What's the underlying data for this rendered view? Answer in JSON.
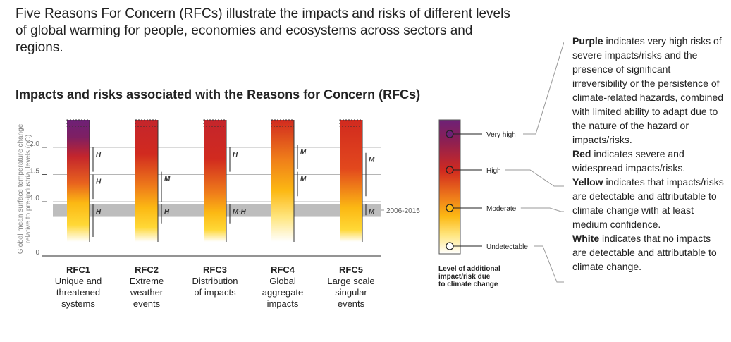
{
  "intro_text": "Five Reasons For Concern (RFCs) illustrate the impacts and risks of different levels of global warming for people, economies and ecosystems across sectors and regions.",
  "chart_data": {
    "type": "bar",
    "title": "Impacts and risks associated with the Reasons for Concern (RFCs)",
    "ylabel_line1": "Global mean surface temperature change",
    "ylabel_line2": "relative to pre-industrial levels (oC)",
    "yticks": [
      "2.0",
      "1.5",
      "1.0",
      "0"
    ],
    "ylim": [
      0,
      2.35
    ],
    "band": {
      "from": 0.72,
      "to": 0.95,
      "label": "2006-2015",
      "color": "#bdbdbd"
    },
    "categories": [
      {
        "id": "RFC1",
        "desc": [
          "Unique and",
          "threatened",
          "systems"
        ]
      },
      {
        "id": "RFC2",
        "desc": [
          "Extreme",
          "weather",
          "events"
        ]
      },
      {
        "id": "RFC3",
        "desc": [
          "Distribution",
          "of impacts"
        ]
      },
      {
        "id": "RFC4",
        "desc": [
          "Global",
          "aggregate",
          "impacts"
        ]
      },
      {
        "id": "RFC5",
        "desc": [
          "Large scale",
          "singular",
          "events"
        ]
      }
    ],
    "confidence_labels": [
      {
        "rfc": 0,
        "label": "H",
        "from": 0.35,
        "to": 0.95
      },
      {
        "rfc": 0,
        "label": "H",
        "from": 1.05,
        "to": 1.5
      },
      {
        "rfc": 0,
        "label": "H",
        "from": 1.55,
        "to": 2.0
      },
      {
        "rfc": 1,
        "label": "H",
        "from": 0.6,
        "to": 0.95
      },
      {
        "rfc": 1,
        "label": "M",
        "from": 1.0,
        "to": 1.55
      },
      {
        "rfc": 2,
        "label": "M-H",
        "from": 0.6,
        "to": 0.95
      },
      {
        "rfc": 2,
        "label": "H",
        "from": 1.55,
        "to": 2.0
      },
      {
        "rfc": 3,
        "label": "M",
        "from": 1.1,
        "to": 1.55
      },
      {
        "rfc": 3,
        "label": "M",
        "from": 1.6,
        "to": 2.05
      },
      {
        "rfc": 4,
        "label": "M",
        "from": 0.75,
        "to": 0.95
      },
      {
        "rfc": 4,
        "label": "M",
        "from": 1.1,
        "to": 1.9
      }
    ],
    "legend": {
      "title": [
        "Level of additional",
        "impact/risk due",
        "to climate change"
      ],
      "levels": [
        {
          "label": "Very high",
          "color": "#6d2077"
        },
        {
          "label": "High",
          "color": "#d12a1f"
        },
        {
          "label": "Moderate",
          "color": "#fcb813"
        },
        {
          "label": "Undetectable",
          "color": "#ffffff"
        }
      ]
    }
  },
  "explanations": [
    {
      "term": "Purple",
      "text": " indicates very high risks of severe impacts/risks and the presence of significant irreversibility or the persistence of climate-related hazards, combined with limited ability to adapt due to the nature of the hazard or impacts/risks."
    },
    {
      "term": "Red",
      "text": " indicates severe and widespread impacts/risks."
    },
    {
      "term": "Yellow",
      "text": " indicates that impacts/risks are detectable and attributable to climate change with at least medium confidence."
    },
    {
      "term": "White",
      "text": " indicates that no impacts are detectable and attributable to climate change."
    }
  ]
}
